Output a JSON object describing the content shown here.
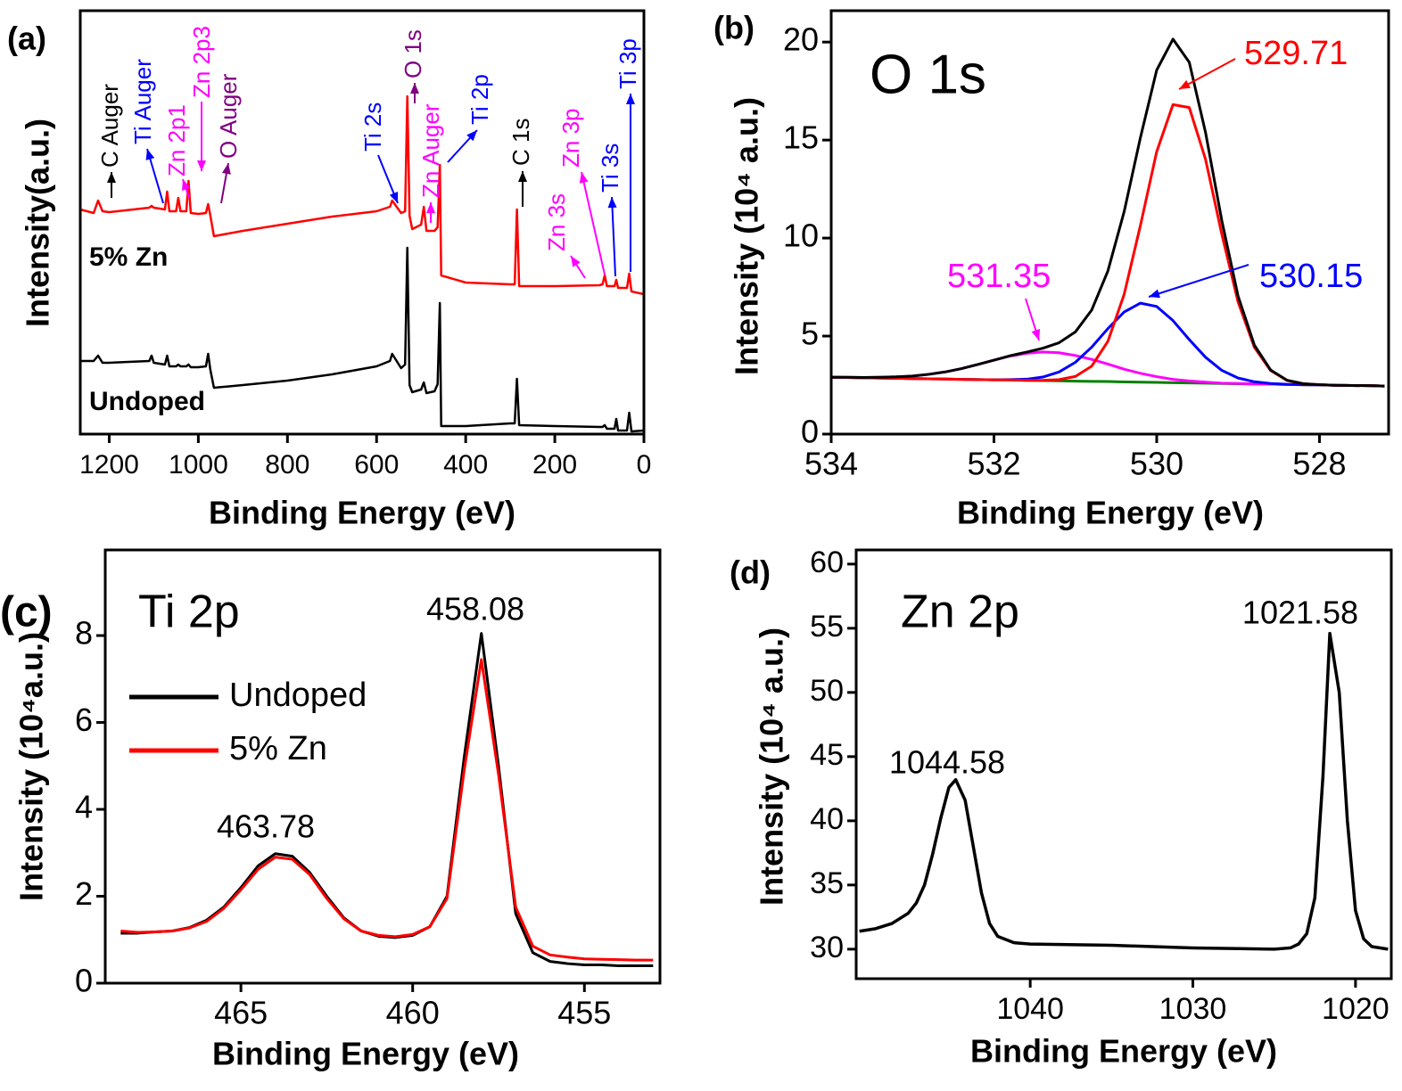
{
  "chart_data": [
    {
      "type": "line",
      "panel_label": "(a)",
      "x_label": "Binding Energy (eV)",
      "y_label": "Intensity(a.u.)",
      "xlim": [
        1265,
        0
      ],
      "xticks": [
        1200,
        1000,
        800,
        600,
        400,
        200,
        0
      ],
      "ylim": [
        0,
        475
      ],
      "legend": "inline",
      "x": [
        1265,
        1235,
        1225,
        1215,
        1200,
        1110,
        1105,
        1100,
        1075,
        1070,
        1065,
        1050,
        1045,
        1040,
        1027,
        1022,
        1017,
        1000,
        983,
        978,
        973,
        965,
        900,
        800,
        700,
        600,
        570,
        565,
        545,
        536,
        531,
        526,
        520,
        500,
        494,
        488,
        470,
        463,
        458,
        455,
        400,
        300,
        290,
        285,
        280,
        200,
        100,
        93,
        88,
        83,
        66,
        62,
        58,
        38,
        33,
        28,
        0
      ],
      "series": [
        {
          "name": "5% Zn",
          "color": "#ff0000",
          "values": [
            252,
            248,
            262,
            250,
            249,
            254,
            256,
            254,
            252,
            272,
            250,
            250,
            265,
            250,
            250,
            284,
            248,
            247,
            248,
            258,
            245,
            222,
            228,
            236,
            244,
            250,
            255,
            262,
            248,
            250,
            379,
            245,
            230,
            235,
            255,
            228,
            228,
            232,
            302,
            178,
            170,
            168,
            168,
            252,
            166,
            166,
            167,
            168,
            178,
            166,
            166,
            173,
            164,
            164,
            180,
            160,
            157
          ]
        },
        {
          "name": "Undoped",
          "color": "#000000",
          "values": [
            82,
            82,
            88,
            80,
            80,
            82,
            88,
            80,
            78,
            88,
            76,
            76,
            78,
            76,
            76,
            78,
            75,
            75,
            76,
            90,
            72,
            52,
            55,
            60,
            67,
            76,
            82,
            90,
            74,
            78,
            209,
            55,
            47,
            50,
            58,
            46,
            48,
            56,
            147,
            9,
            9,
            12,
            12,
            62,
            10,
            9,
            8,
            8,
            10,
            6,
            6,
            17,
            4,
            4,
            24,
            3,
            4
          ]
        }
      ],
      "annotations": [
        {
          "text": "C Auger",
          "color": "#000000"
        },
        {
          "text": "Ti Auger",
          "color": "#0000ff"
        },
        {
          "text": "Zn 2p1",
          "color": "#ff00ff"
        },
        {
          "text": "Zn 2p3",
          "color": "#ff00ff"
        },
        {
          "text": "O Auger",
          "color": "#800080"
        },
        {
          "text": "Ti 2s",
          "color": "#0000ff"
        },
        {
          "text": "O 1s",
          "color": "#800080"
        },
        {
          "text": "Zn Auger",
          "color": "#ff00ff"
        },
        {
          "text": "Ti 2p",
          "color": "#0000ff"
        },
        {
          "text": "C 1s",
          "color": "#000000"
        },
        {
          "text": "Zn 3s",
          "color": "#ff00ff"
        },
        {
          "text": "Zn 3p",
          "color": "#ff00ff"
        },
        {
          "text": "Ti 3s",
          "color": "#0000ff"
        },
        {
          "text": "Ti 3p",
          "color": "#0000ff"
        }
      ]
    },
    {
      "type": "line",
      "panel_label": "(b)",
      "title": "O 1s",
      "x_label": "Binding Energy (eV)",
      "y_label": "Intensity (10⁴ a.u.)",
      "xlim": [
        534,
        527.15
      ],
      "xticks": [
        534,
        532,
        530,
        528
      ],
      "ylim": [
        0,
        21.6
      ],
      "yticks": [
        0,
        5,
        10,
        15,
        20
      ],
      "x": [
        534,
        533.8,
        533.6,
        533.4,
        533.2,
        533,
        532.8,
        532.6,
        532.4,
        532.2,
        532,
        531.8,
        531.6,
        531.4,
        531.2,
        531,
        530.8,
        530.6,
        530.4,
        530.2,
        530,
        529.8,
        529.6,
        529.4,
        529.2,
        529,
        528.8,
        528.6,
        528.4,
        528.2,
        528,
        527.8,
        527.6,
        527.4,
        527.2
      ],
      "series": [
        {
          "color": "#008000",
          "values": [
            2.9,
            2.89,
            2.87,
            2.86,
            2.85,
            2.83,
            2.82,
            2.81,
            2.79,
            2.78,
            2.77,
            2.76,
            2.74,
            2.73,
            2.72,
            2.7,
            2.69,
            2.68,
            2.66,
            2.65,
            2.64,
            2.62,
            2.61,
            2.6,
            2.58,
            2.57,
            2.56,
            2.55,
            2.53,
            2.52,
            2.51,
            2.49,
            2.48,
            2.47,
            2.45
          ]
        },
        {
          "color": "#ff00ff",
          "values": [
            2.9,
            2.9,
            2.89,
            2.9,
            2.92,
            2.96,
            3.05,
            3.17,
            3.34,
            3.55,
            3.77,
            3.98,
            4.12,
            4.19,
            4.15,
            4.01,
            3.81,
            3.57,
            3.31,
            3.1,
            2.93,
            2.79,
            2.71,
            2.65,
            2.6,
            2.58,
            2.56,
            2.55,
            2.53,
            2.52,
            2.51,
            2.49,
            2.48,
            2.47,
            2.45
          ]
        },
        {
          "color": "#0000ff",
          "values": [
            2.9,
            2.89,
            2.87,
            2.86,
            2.85,
            2.83,
            2.82,
            2.81,
            2.79,
            2.78,
            2.77,
            2.78,
            2.8,
            2.91,
            3.17,
            3.66,
            4.43,
            5.38,
            6.23,
            6.68,
            6.51,
            5.79,
            4.82,
            3.92,
            3.25,
            2.86,
            2.67,
            2.58,
            2.54,
            2.52,
            2.51,
            2.49,
            2.48,
            2.47,
            2.45
          ]
        },
        {
          "color": "#ff0000",
          "values": [
            2.9,
            2.89,
            2.87,
            2.86,
            2.85,
            2.83,
            2.82,
            2.81,
            2.79,
            2.78,
            2.77,
            2.76,
            2.74,
            2.74,
            2.78,
            2.94,
            3.46,
            4.73,
            7.13,
            10.65,
            14.41,
            16.81,
            16.66,
            14.02,
            10.2,
            6.74,
            4.43,
            3.24,
            2.74,
            2.57,
            2.52,
            2.49,
            2.48,
            2.47,
            2.45
          ]
        },
        {
          "color": "#000000",
          "values": [
            2.9,
            2.9,
            2.89,
            2.9,
            2.92,
            2.96,
            3.05,
            3.17,
            3.34,
            3.55,
            3.77,
            4.0,
            4.18,
            4.38,
            4.66,
            5.21,
            6.32,
            8.32,
            11.35,
            15.13,
            18.57,
            20.15,
            18.97,
            15.39,
            10.89,
            7.04,
            4.54,
            3.27,
            2.75,
            2.57,
            2.52,
            2.49,
            2.48,
            2.47,
            2.45
          ]
        }
      ],
      "annotations": [
        {
          "text": "529.71",
          "color": "#ff0000"
        },
        {
          "text": "530.15",
          "color": "#0000ff"
        },
        {
          "text": "531.35",
          "color": "#ff00ff"
        }
      ]
    },
    {
      "type": "line",
      "panel_label": "(c)",
      "title": "Ti 2p",
      "x_label": "Binding Energy (eV)",
      "y_label": "Intensity (10⁴a.u.)",
      "xlim": [
        468.95,
        452.8
      ],
      "xticks": [
        465,
        460,
        455
      ],
      "ylim": [
        0,
        9.97
      ],
      "yticks": [
        0,
        2,
        4,
        6,
        8
      ],
      "legend": "upper left",
      "x": [
        468.5,
        468,
        467.5,
        467,
        466.5,
        466,
        465.5,
        465,
        464.5,
        464,
        463.5,
        463,
        462.5,
        462,
        461.5,
        461,
        460.5,
        460,
        459.5,
        459,
        458.5,
        458,
        457.5,
        457,
        456.5,
        456,
        455.5,
        455,
        454.5,
        454,
        453.5,
        453
      ],
      "series": [
        {
          "name": "Undoped",
          "color": "#000000",
          "values": [
            1.15,
            1.15,
            1.18,
            1.2,
            1.28,
            1.45,
            1.75,
            2.2,
            2.7,
            2.98,
            2.92,
            2.55,
            2.0,
            1.5,
            1.2,
            1.08,
            1.05,
            1.1,
            1.3,
            2.0,
            5.2,
            8.05,
            5.0,
            1.6,
            0.7,
            0.5,
            0.45,
            0.42,
            0.42,
            0.4,
            0.4,
            0.4
          ]
        },
        {
          "name": "5% Zn",
          "color": "#ff0000",
          "values": [
            1.2,
            1.17,
            1.18,
            1.2,
            1.27,
            1.42,
            1.72,
            2.15,
            2.62,
            2.9,
            2.85,
            2.5,
            1.95,
            1.48,
            1.2,
            1.1,
            1.07,
            1.12,
            1.3,
            1.95,
            4.9,
            7.45,
            4.8,
            1.75,
            0.85,
            0.65,
            0.6,
            0.56,
            0.55,
            0.54,
            0.53,
            0.53
          ]
        }
      ],
      "annotations": [
        {
          "text": "463.78",
          "color": "#000000"
        },
        {
          "text": "458.08",
          "color": "#000000"
        }
      ]
    },
    {
      "type": "line",
      "panel_label": "(d)",
      "title": "Zn 2p",
      "x_label": "Binding Energy (eV)",
      "y_label": "Intensity (10⁴ a.u.)",
      "xlim": [
        1050.7,
        1017.8
      ],
      "xticks": [
        1040,
        1030,
        1020
      ],
      "ylim": [
        27.7,
        61.1
      ],
      "yticks": [
        30,
        35,
        40,
        45,
        50,
        55,
        60
      ],
      "x": [
        1050.5,
        1049.5,
        1048.5,
        1047.5,
        1047,
        1046.5,
        1046,
        1045.5,
        1045,
        1044.58,
        1044,
        1043.5,
        1043,
        1042.5,
        1042,
        1041,
        1040,
        1035,
        1030,
        1025,
        1024,
        1023.5,
        1023,
        1022.5,
        1022,
        1021.58,
        1021,
        1020.5,
        1020,
        1019.5,
        1019,
        1018
      ],
      "series": [
        {
          "color": "#000000",
          "values": [
            31.4,
            31.6,
            32.0,
            32.8,
            33.6,
            35.0,
            37.4,
            40.2,
            42.6,
            43.2,
            41.6,
            38.0,
            34.4,
            32.0,
            31.0,
            30.5,
            30.4,
            30.3,
            30.1,
            30.0,
            30.1,
            30.4,
            31.2,
            34.0,
            43.5,
            54.6,
            50.0,
            40.0,
            33.0,
            30.8,
            30.2,
            30.0
          ]
        }
      ],
      "annotations": [
        {
          "text": "1044.58",
          "color": "#000000"
        },
        {
          "text": "1021.58",
          "color": "#000000"
        }
      ]
    }
  ]
}
